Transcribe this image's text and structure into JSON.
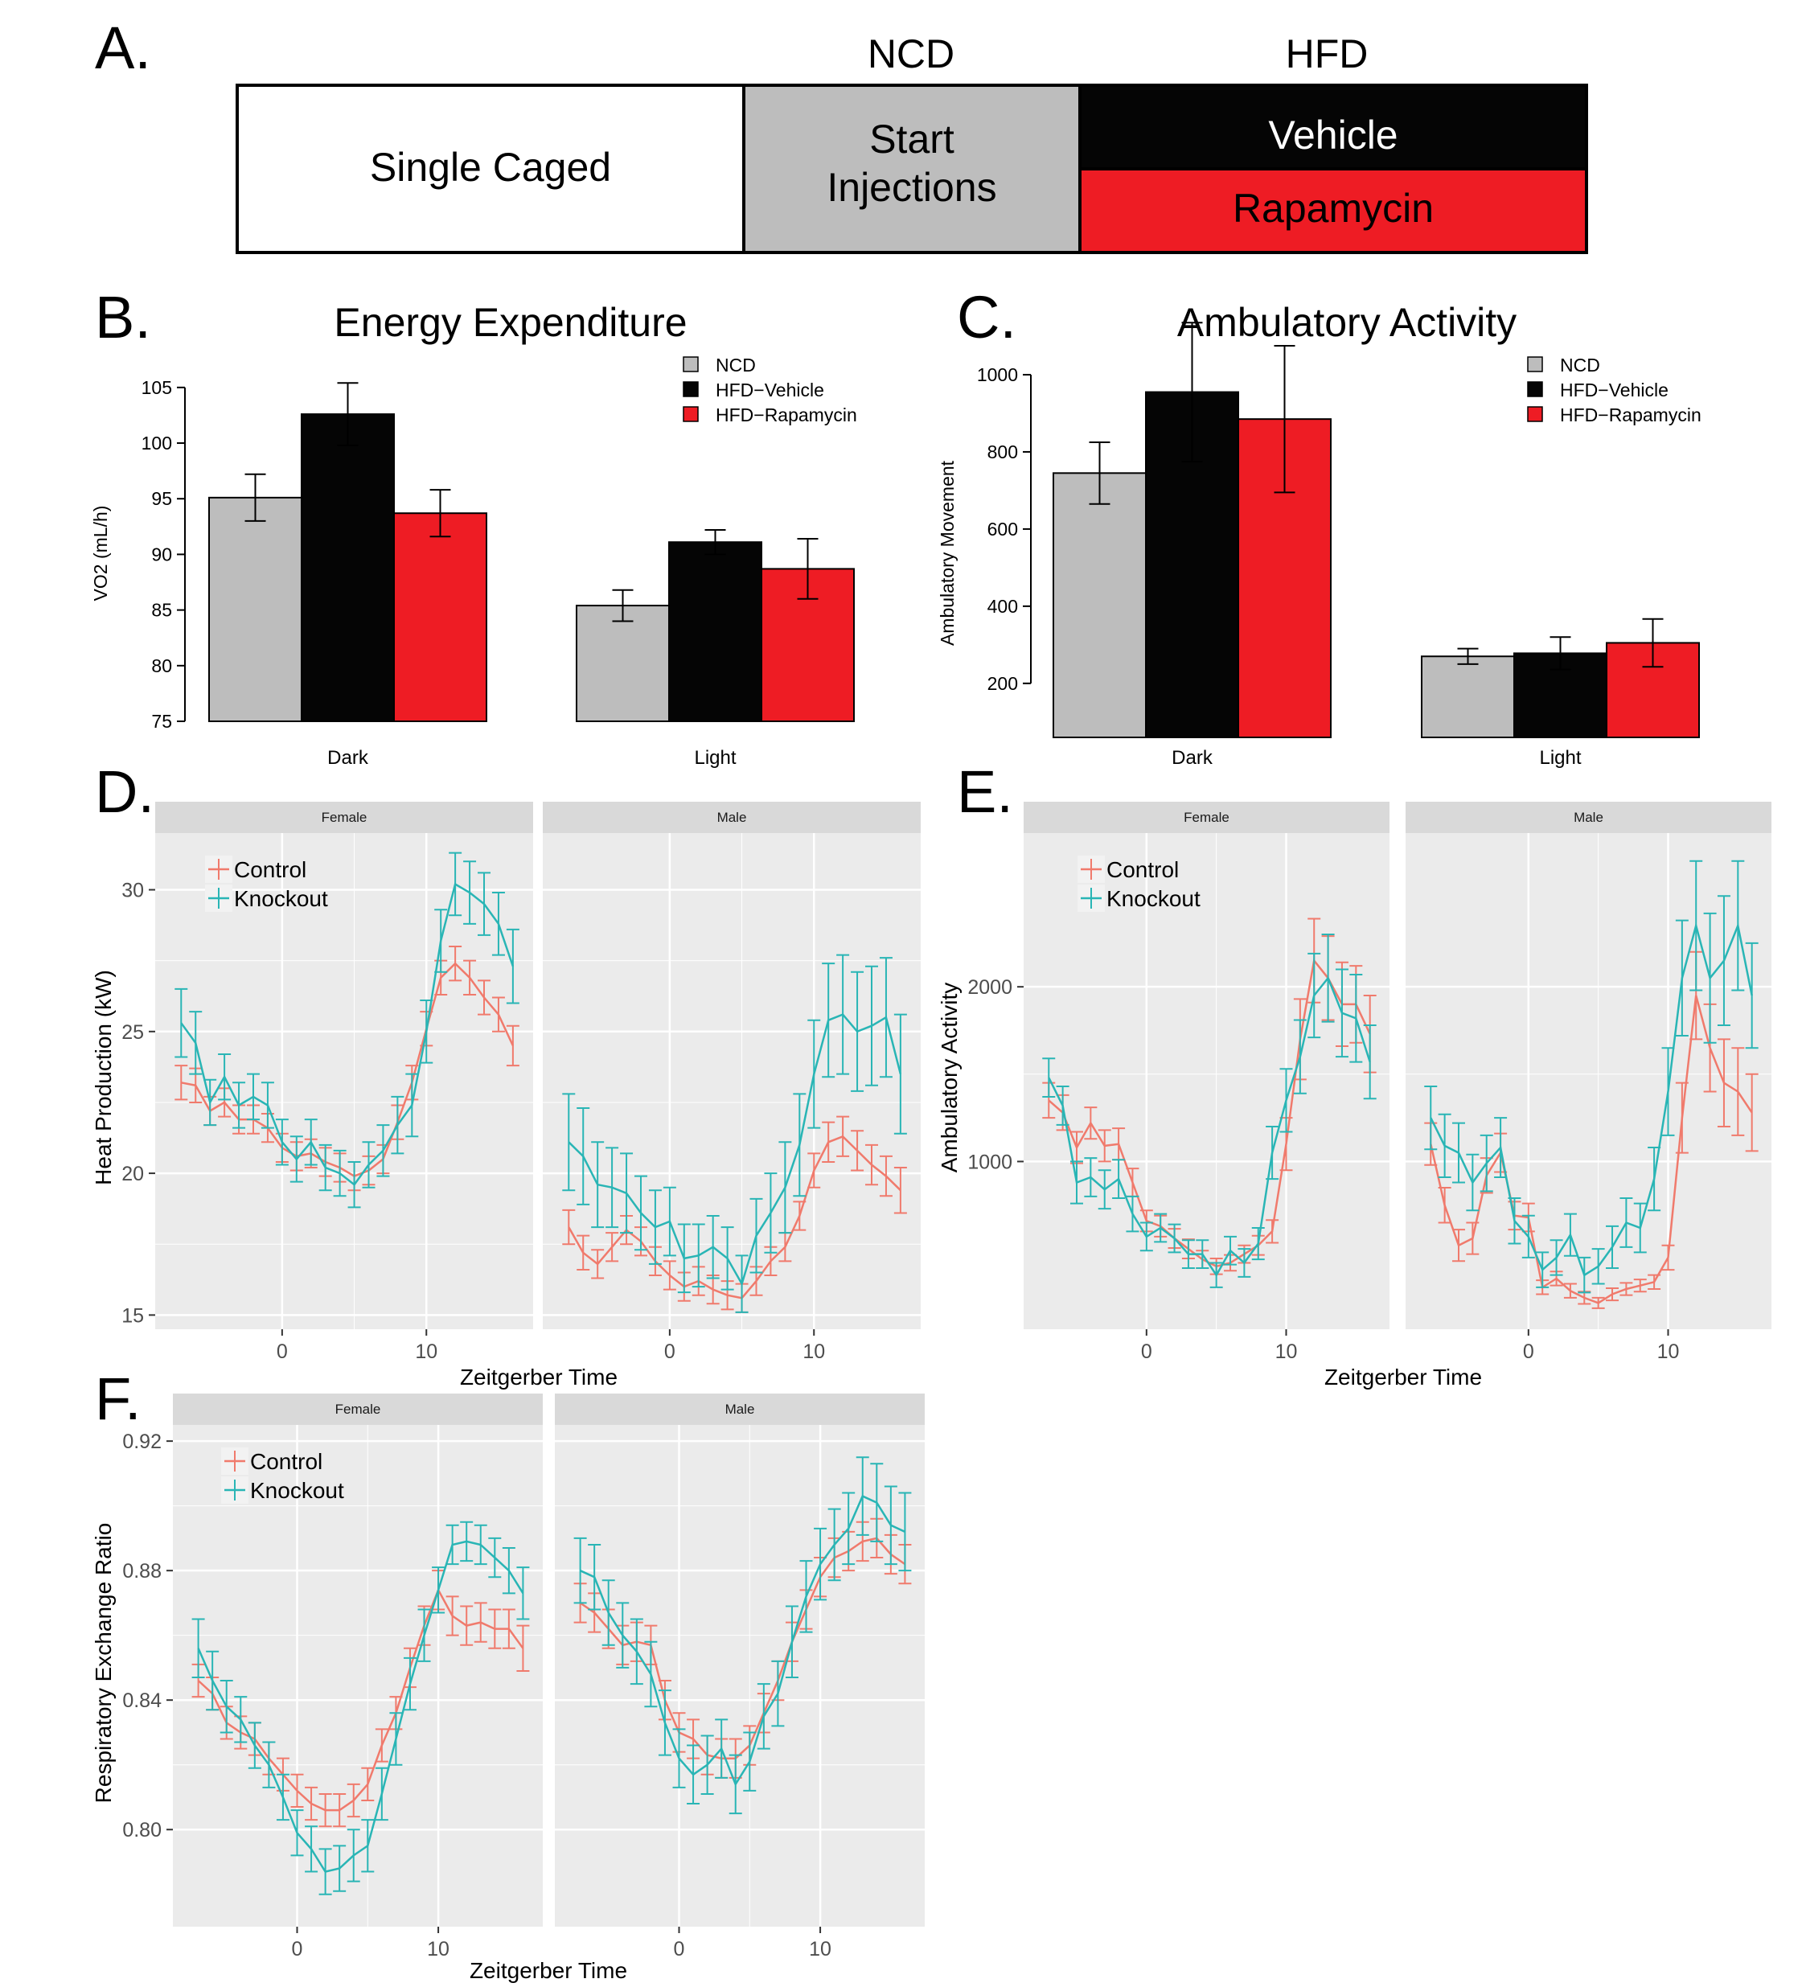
{
  "figure": {
    "panel_a": {
      "letter": "A.",
      "headers": {
        "ncd": "NCD",
        "hfd": "HFD"
      },
      "boxes": {
        "single": "Single Caged",
        "start1": "Start",
        "start2": "Injections",
        "vehicle": "Vehicle",
        "rapamycin": "Rapamycin"
      }
    },
    "colors": {
      "ncd": "#bdbdbd",
      "hfd_vehicle": "#050505",
      "hfd_rapamycin": "#ee1c24",
      "control": "#f07a6c",
      "knockout": "#29b5b5",
      "panel_bg": "#ebebeb",
      "strip_bg": "#d9d9d9",
      "grid": "#ffffff"
    }
  },
  "chart_data": [
    {
      "type": "bar",
      "letter": "B.",
      "title": "Energy Expenditure",
      "ylabel": "VO2 (mL/h)",
      "xlabel": "",
      "categories": [
        "Dark",
        "Light"
      ],
      "ylim": [
        75,
        106
      ],
      "yticks": [
        75,
        80,
        85,
        90,
        95,
        100,
        105
      ],
      "legend_position": "top-right",
      "series": [
        {
          "name": "NCD",
          "values": [
            95.1,
            85.4
          ],
          "err": [
            2.1,
            1.4
          ]
        },
        {
          "name": "HFD−Vehicle",
          "values": [
            102.6,
            91.1
          ],
          "err": [
            2.8,
            1.1
          ]
        },
        {
          "name": "HFD−Rapamycin",
          "values": [
            93.7,
            88.7
          ],
          "err": [
            2.1,
            2.7
          ]
        }
      ]
    },
    {
      "type": "bar",
      "letter": "C.",
      "title": "Ambulatory Activity",
      "ylabel": "Ambulatory Movement",
      "xlabel": "",
      "categories": [
        "Dark",
        "Light"
      ],
      "ylim": [
        60,
        1100
      ],
      "yticks": [
        200,
        400,
        600,
        800,
        1000
      ],
      "legend_position": "top-right",
      "series": [
        {
          "name": "NCD",
          "values": [
            745,
            270
          ],
          "err": [
            80,
            20
          ]
        },
        {
          "name": "HFD−Vehicle",
          "values": [
            955,
            278
          ],
          "err": [
            180,
            42
          ]
        },
        {
          "name": "HFD−Rapamycin",
          "values": [
            885,
            305
          ],
          "err": [
            190,
            62
          ]
        }
      ]
    },
    {
      "type": "line",
      "letter": "D.",
      "xlabel": "Zeitgerber Time",
      "ylabel": "Heat Production (kW)",
      "xlim": [
        -8.8,
        17.4
      ],
      "ylim": [
        14.5,
        32.0
      ],
      "xticks": [
        0,
        10
      ],
      "yticks": [
        15,
        20,
        25,
        30
      ],
      "legend_position": "top-left",
      "x": [
        -7,
        -6,
        -5,
        -4,
        -3,
        -2,
        -1,
        0,
        1,
        2,
        3,
        4,
        5,
        6,
        7,
        8,
        9,
        10,
        11,
        12,
        13,
        14,
        15,
        16
      ],
      "facets": [
        {
          "label": "Female",
          "series": [
            {
              "name": "Control",
              "values": [
                23.2,
                23.1,
                22.2,
                22.5,
                21.9,
                21.9,
                21.6,
                20.9,
                20.6,
                20.7,
                20.4,
                20.2,
                19.9,
                20.1,
                20.5,
                21.8,
                23.2,
                25.1,
                26.9,
                27.4,
                26.9,
                26.2,
                25.6,
                24.5
              ],
              "err": [
                0.6,
                0.6,
                0.5,
                0.5,
                0.5,
                0.5,
                0.5,
                0.5,
                0.5,
                0.5,
                0.5,
                0.5,
                0.5,
                0.5,
                0.5,
                0.6,
                0.6,
                0.6,
                0.6,
                0.6,
                0.6,
                0.6,
                0.6,
                0.7
              ]
            },
            {
              "name": "Knockout",
              "values": [
                25.3,
                24.6,
                22.5,
                23.4,
                22.4,
                22.7,
                22.4,
                21.1,
                20.5,
                21.1,
                20.2,
                20.0,
                19.6,
                20.3,
                20.8,
                21.7,
                22.4,
                25.0,
                28.2,
                30.2,
                29.9,
                29.5,
                28.8,
                27.3
              ],
              "err": [
                1.2,
                1.1,
                0.8,
                0.8,
                0.8,
                0.8,
                0.8,
                0.8,
                0.8,
                0.8,
                0.8,
                0.8,
                0.8,
                0.8,
                0.9,
                1.0,
                1.1,
                1.1,
                1.1,
                1.1,
                1.1,
                1.1,
                1.1,
                1.3
              ]
            }
          ]
        },
        {
          "label": "Male",
          "series": [
            {
              "name": "Control",
              "values": [
                18.1,
                17.2,
                16.8,
                17.4,
                18.0,
                17.6,
                16.9,
                16.4,
                16.0,
                16.2,
                15.9,
                15.7,
                15.6,
                16.2,
                16.9,
                17.4,
                18.5,
                20.1,
                21.1,
                21.3,
                20.8,
                20.3,
                19.9,
                19.4
              ],
              "err": [
                0.6,
                0.6,
                0.5,
                0.5,
                0.5,
                0.5,
                0.5,
                0.5,
                0.5,
                0.5,
                0.5,
                0.5,
                0.5,
                0.5,
                0.5,
                0.5,
                0.5,
                0.6,
                0.7,
                0.7,
                0.7,
                0.7,
                0.7,
                0.8
              ]
            },
            {
              "name": "Knockout",
              "values": [
                21.1,
                20.6,
                19.6,
                19.5,
                19.3,
                18.6,
                18.1,
                18.3,
                17.0,
                17.1,
                17.4,
                17.0,
                16.1,
                17.8,
                18.6,
                19.5,
                21.0,
                23.5,
                25.4,
                25.6,
                25.0,
                25.2,
                25.5,
                23.5
              ],
              "err": [
                1.7,
                1.7,
                1.5,
                1.4,
                1.4,
                1.3,
                1.3,
                1.2,
                1.2,
                1.1,
                1.1,
                1.1,
                1.0,
                1.3,
                1.4,
                1.6,
                1.8,
                1.9,
                2.0,
                2.1,
                2.1,
                2.1,
                2.1,
                2.1
              ]
            }
          ]
        }
      ]
    },
    {
      "type": "line",
      "letter": "E.",
      "xlabel": "Zeitgerber Time",
      "ylabel": "Ambulatory Activity",
      "xlim": [
        -8.8,
        17.4
      ],
      "ylim": [
        40,
        2880
      ],
      "xticks": [
        0,
        10
      ],
      "yticks": [
        1000,
        2000
      ],
      "legend_position": "top-left",
      "x": [
        -7,
        -6,
        -5,
        -4,
        -3,
        -2,
        -1,
        0,
        1,
        2,
        3,
        4,
        5,
        6,
        7,
        8,
        9,
        10,
        11,
        12,
        13,
        14,
        15,
        16
      ],
      "facets": [
        {
          "label": "Female",
          "series": [
            {
              "name": "Control",
              "values": [
                1350,
                1280,
                1080,
                1220,
                1090,
                1100,
                880,
                660,
                630,
                560,
                500,
                440,
                400,
                420,
                470,
                520,
                600,
                1100,
                1700,
                2150,
                2050,
                1900,
                1900,
                1730
              ],
              "err": [
                100,
                100,
                90,
                90,
                90,
                90,
                80,
                60,
                60,
                55,
                55,
                50,
                45,
                45,
                50,
                55,
                65,
                150,
                230,
                240,
                240,
                240,
                220,
                220
              ]
            },
            {
              "name": "Knockout",
              "values": [
                1480,
                1320,
                880,
                910,
                840,
                900,
                700,
                570,
                620,
                560,
                470,
                470,
                350,
                490,
                420,
                530,
                1050,
                1350,
                1600,
                1950,
                2050,
                1850,
                1820,
                1570
              ],
              "err": [
                110,
                110,
                120,
                110,
                110,
                110,
                100,
                80,
                80,
                80,
                80,
                80,
                70,
                80,
                80,
                90,
                150,
                180,
                210,
                240,
                250,
                250,
                250,
                210
              ]
            }
          ]
        },
        {
          "label": "Male",
          "series": [
            {
              "name": "Control",
              "values": [
                1100,
                750,
                520,
                560,
                920,
                1050,
                690,
                680,
                280,
                330,
                260,
                220,
                190,
                240,
                270,
                290,
                310,
                450,
                1250,
                1950,
                1650,
                1450,
                1400,
                1280
              ],
              "err": [
                120,
                100,
                90,
                90,
                100,
                110,
                80,
                80,
                40,
                40,
                40,
                35,
                30,
                35,
                35,
                35,
                40,
                70,
                200,
                250,
                250,
                250,
                250,
                220
              ]
            },
            {
              "name": "Knockout",
              "values": [
                1250,
                1090,
                1050,
                880,
                990,
                1080,
                660,
                570,
                380,
                450,
                580,
                350,
                400,
                510,
                650,
                620,
                900,
                1400,
                2050,
                2350,
                2050,
                2150,
                2350,
                1950
              ],
              "err": [
                180,
                180,
                170,
                160,
                160,
                170,
                130,
                120,
                100,
                100,
                120,
                100,
                100,
                120,
                140,
                140,
                180,
                250,
                330,
                370,
                370,
                370,
                370,
                300
              ]
            }
          ]
        }
      ]
    },
    {
      "type": "line",
      "letter": "F.",
      "xlabel": "Zeitgerber Time",
      "ylabel": "Respiratory Exchange Ratio",
      "xlim": [
        -8.8,
        17.4
      ],
      "ylim": [
        0.77,
        0.925
      ],
      "xticks": [
        0,
        10
      ],
      "yticks": [
        0.8,
        0.84,
        0.88,
        0.92
      ],
      "y_tick_labels": [
        "0.80",
        "0.84",
        "0.88",
        "0.92"
      ],
      "legend_position": "top-left",
      "x": [
        -7,
        -6,
        -5,
        -4,
        -3,
        -2,
        -1,
        0,
        1,
        2,
        3,
        4,
        5,
        6,
        7,
        8,
        9,
        10,
        11,
        12,
        13,
        14,
        15,
        16
      ],
      "facets": [
        {
          "label": "Female",
          "series": [
            {
              "name": "Control",
              "values": [
                0.846,
                0.842,
                0.833,
                0.83,
                0.828,
                0.822,
                0.817,
                0.812,
                0.808,
                0.806,
                0.806,
                0.809,
                0.814,
                0.826,
                0.836,
                0.85,
                0.863,
                0.874,
                0.866,
                0.863,
                0.864,
                0.862,
                0.862,
                0.856
              ],
              "err": [
                0.005,
                0.005,
                0.005,
                0.005,
                0.005,
                0.005,
                0.005,
                0.005,
                0.005,
                0.005,
                0.005,
                0.005,
                0.005,
                0.005,
                0.005,
                0.006,
                0.006,
                0.006,
                0.006,
                0.006,
                0.006,
                0.006,
                0.006,
                0.007
              ]
            },
            {
              "name": "Knockout",
              "values": [
                0.856,
                0.846,
                0.838,
                0.834,
                0.826,
                0.82,
                0.81,
                0.799,
                0.794,
                0.787,
                0.788,
                0.792,
                0.795,
                0.811,
                0.828,
                0.845,
                0.86,
                0.874,
                0.888,
                0.889,
                0.888,
                0.884,
                0.88,
                0.873
              ],
              "err": [
                0.009,
                0.009,
                0.008,
                0.007,
                0.007,
                0.007,
                0.007,
                0.007,
                0.007,
                0.007,
                0.007,
                0.008,
                0.008,
                0.008,
                0.008,
                0.008,
                0.008,
                0.007,
                0.006,
                0.006,
                0.006,
                0.006,
                0.007,
                0.008
              ]
            }
          ]
        },
        {
          "label": "Male",
          "series": [
            {
              "name": "Control",
              "values": [
                0.87,
                0.867,
                0.862,
                0.857,
                0.858,
                0.857,
                0.84,
                0.83,
                0.828,
                0.823,
                0.822,
                0.822,
                0.826,
                0.836,
                0.846,
                0.858,
                0.868,
                0.878,
                0.884,
                0.886,
                0.889,
                0.89,
                0.885,
                0.882
              ],
              "err": [
                0.006,
                0.006,
                0.006,
                0.006,
                0.006,
                0.006,
                0.006,
                0.006,
                0.006,
                0.006,
                0.006,
                0.006,
                0.006,
                0.006,
                0.006,
                0.006,
                0.006,
                0.006,
                0.006,
                0.006,
                0.006,
                0.006,
                0.006,
                0.006
              ]
            },
            {
              "name": "Knockout",
              "values": [
                0.88,
                0.878,
                0.867,
                0.86,
                0.855,
                0.848,
                0.833,
                0.822,
                0.817,
                0.82,
                0.825,
                0.814,
                0.821,
                0.835,
                0.842,
                0.858,
                0.872,
                0.882,
                0.888,
                0.893,
                0.903,
                0.901,
                0.894,
                0.892
              ],
              "err": [
                0.01,
                0.01,
                0.01,
                0.01,
                0.01,
                0.01,
                0.01,
                0.009,
                0.009,
                0.009,
                0.009,
                0.009,
                0.009,
                0.01,
                0.01,
                0.011,
                0.011,
                0.011,
                0.011,
                0.011,
                0.012,
                0.012,
                0.012,
                0.012
              ]
            }
          ]
        }
      ]
    }
  ]
}
